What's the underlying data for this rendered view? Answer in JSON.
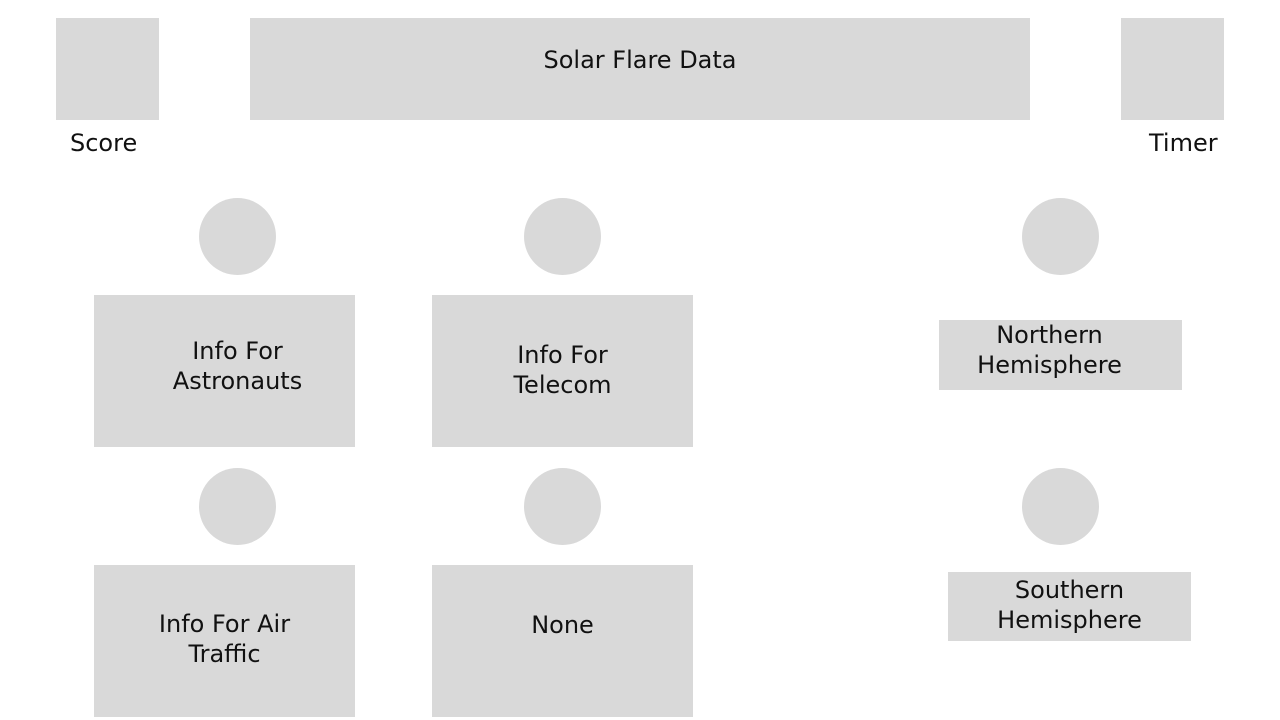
{
  "header": {
    "title": "Solar Flare Data",
    "score_label": "Score",
    "timer_label": "Timer"
  },
  "options": {
    "astronauts": "Info For\nAstronauts",
    "telecom": "Info For\nTelecom",
    "air_traffic": "Info For Air\nTraffic",
    "none": "None"
  },
  "hemispheres": {
    "northern": "Northern\nHemisphere",
    "southern": "Southern\nHemisphere"
  },
  "colors": {
    "placeholder": "#d9d9d9",
    "text": "#111111",
    "background": "#ffffff"
  }
}
